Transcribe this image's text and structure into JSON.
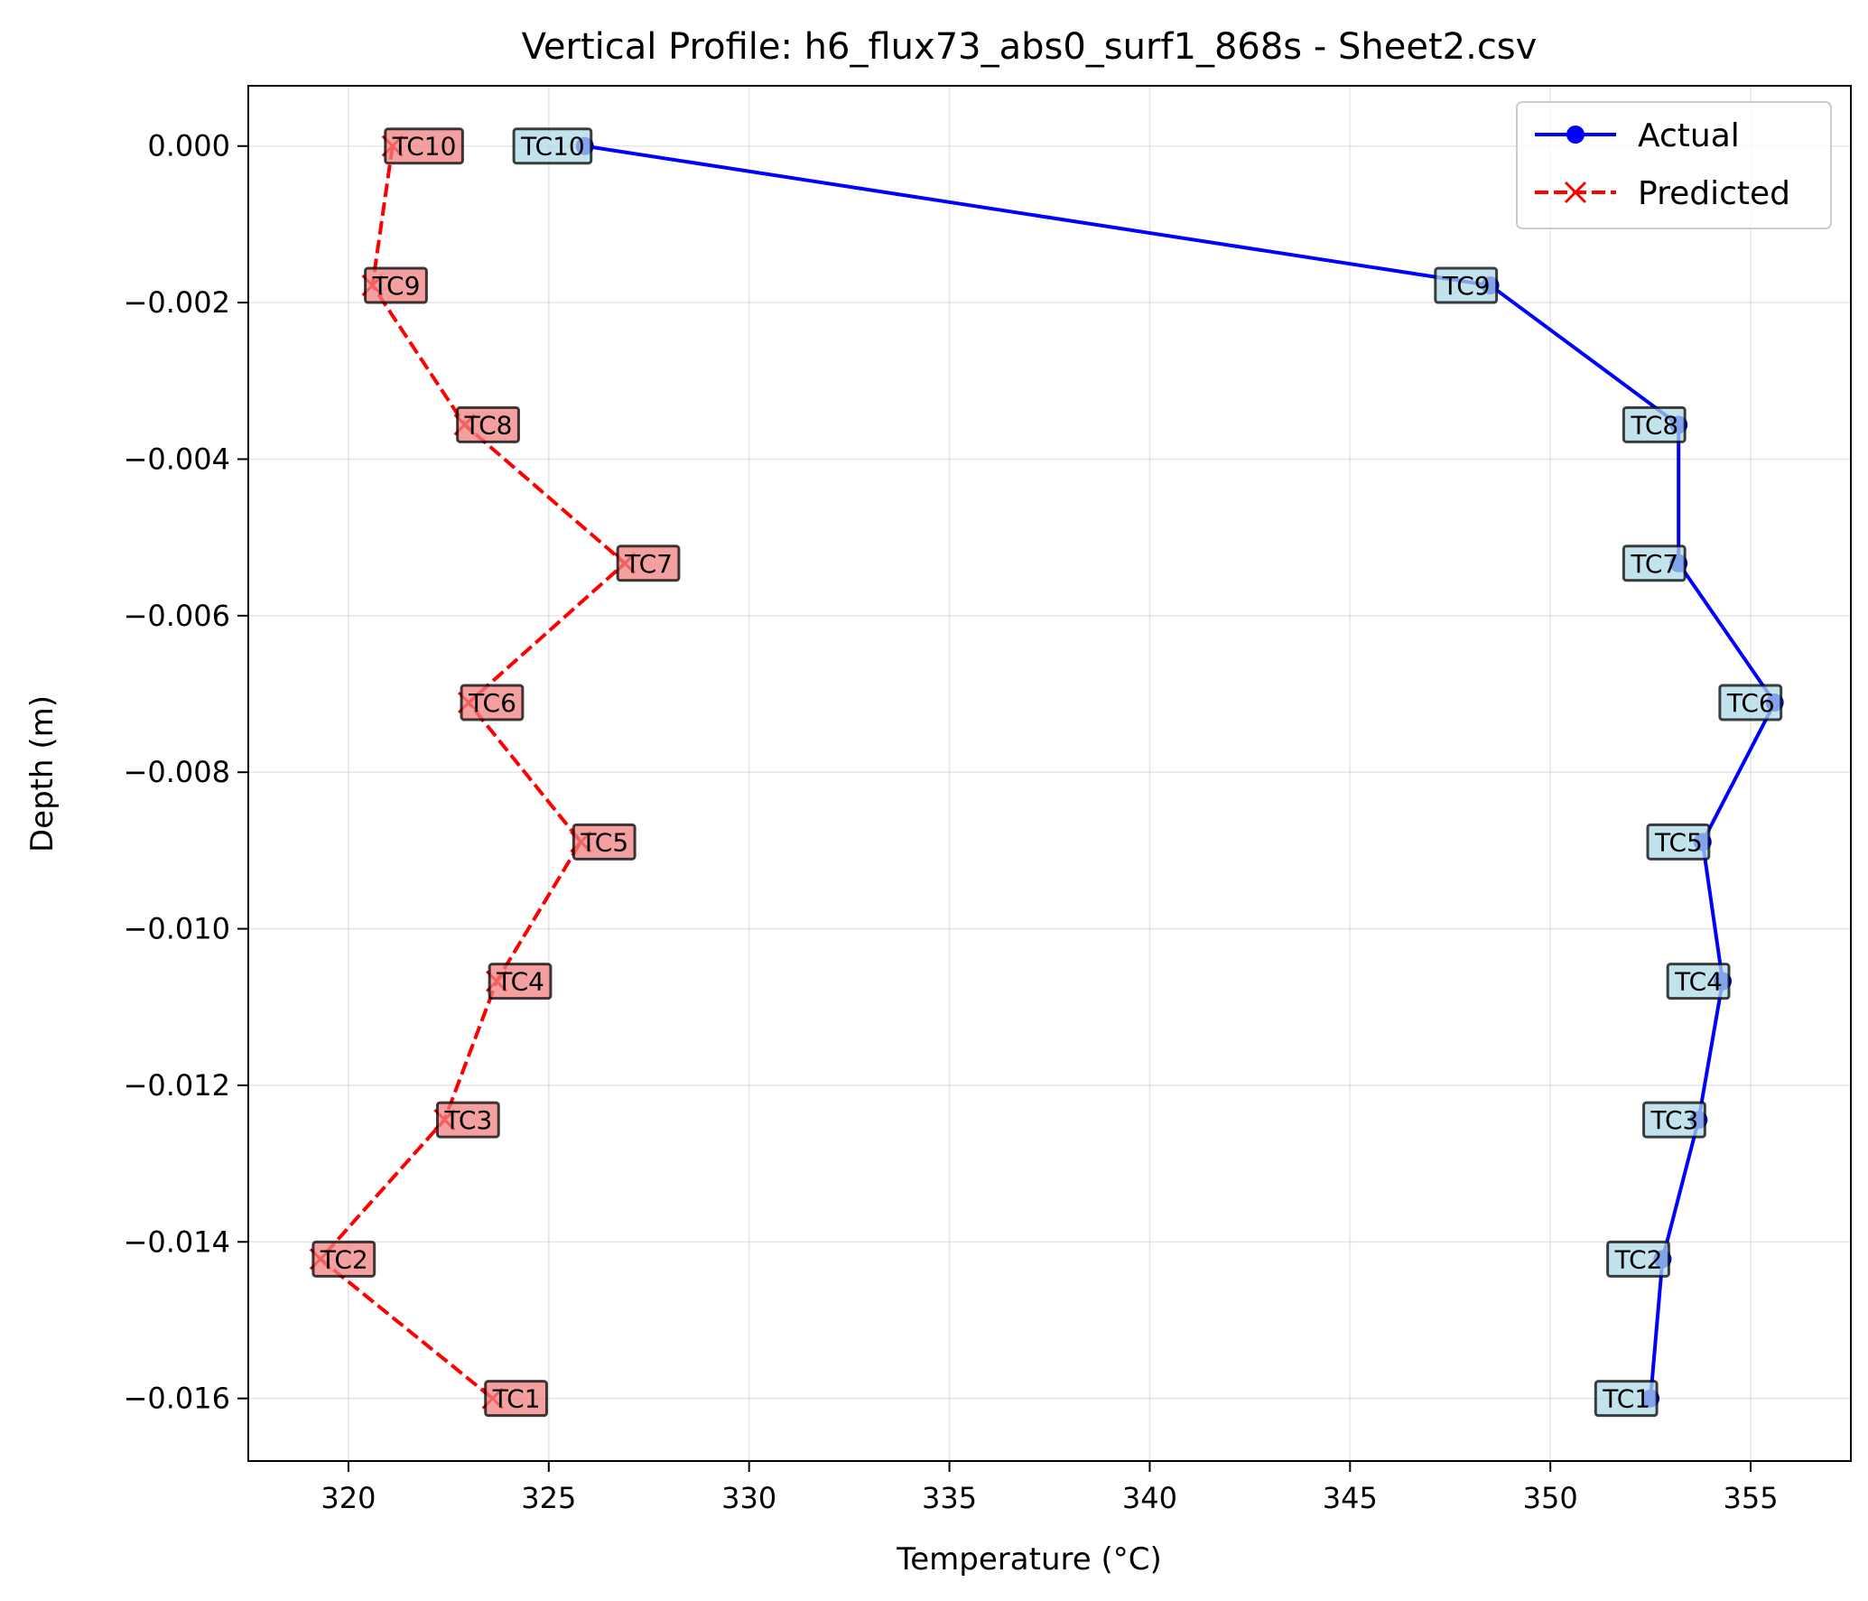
{
  "chart_data": {
    "type": "line",
    "title": "Vertical Profile: h6_flux73_abs0_surf1_868s - Sheet2.csv",
    "xlabel": "Temperature (°C)",
    "ylabel": "Depth (m)",
    "xlim": [
      317.5,
      357.5
    ],
    "ylim": [
      -0.0168,
      0.00077
    ],
    "xticks": [
      320,
      325,
      330,
      335,
      340,
      345,
      350,
      355
    ],
    "yticks": [
      0.0,
      -0.002,
      -0.004,
      -0.006,
      -0.008,
      -0.01,
      -0.012,
      -0.014,
      -0.016
    ],
    "xtick_labels": [
      "320",
      "325",
      "330",
      "335",
      "340",
      "345",
      "350",
      "355"
    ],
    "ytick_labels": [
      "0.000",
      "−0.002",
      "−0.004",
      "−0.006",
      "−0.008",
      "−0.010",
      "−0.012",
      "−0.014",
      "−0.016"
    ],
    "grid": true,
    "legend_position": "top-right",
    "series": [
      {
        "name": "Actual",
        "color": "#0000ff",
        "style": "solid",
        "marker": "circle",
        "label_bg": "#add8e6",
        "points": [
          {
            "label": "TC10",
            "x": 325.9,
            "y": 0.0
          },
          {
            "label": "TC9",
            "x": 348.5,
            "y": -0.00178
          },
          {
            "label": "TC8",
            "x": 353.2,
            "y": -0.00356
          },
          {
            "label": "TC7",
            "x": 353.2,
            "y": -0.00533
          },
          {
            "label": "TC6",
            "x": 355.6,
            "y": -0.00711
          },
          {
            "label": "TC5",
            "x": 353.8,
            "y": -0.00889
          },
          {
            "label": "TC4",
            "x": 354.3,
            "y": -0.01067
          },
          {
            "label": "TC3",
            "x": 353.7,
            "y": -0.01244
          },
          {
            "label": "TC2",
            "x": 352.8,
            "y": -0.01422
          },
          {
            "label": "TC1",
            "x": 352.5,
            "y": -0.016
          }
        ]
      },
      {
        "name": "Predicted",
        "color": "#ff0000",
        "style": "dashed",
        "marker": "x",
        "label_bg": "#f08080",
        "points": [
          {
            "label": "TC10",
            "x": 321.1,
            "y": 0.0
          },
          {
            "label": "TC9",
            "x": 320.6,
            "y": -0.00178
          },
          {
            "label": "TC8",
            "x": 322.9,
            "y": -0.00356
          },
          {
            "label": "TC7",
            "x": 326.9,
            "y": -0.00533
          },
          {
            "label": "TC6",
            "x": 323.0,
            "y": -0.00711
          },
          {
            "label": "TC5",
            "x": 325.8,
            "y": -0.00889
          },
          {
            "label": "TC4",
            "x": 323.7,
            "y": -0.01067
          },
          {
            "label": "TC3",
            "x": 322.4,
            "y": -0.01244
          },
          {
            "label": "TC2",
            "x": 319.3,
            "y": -0.01422
          },
          {
            "label": "TC1",
            "x": 323.6,
            "y": -0.016
          }
        ]
      }
    ]
  }
}
